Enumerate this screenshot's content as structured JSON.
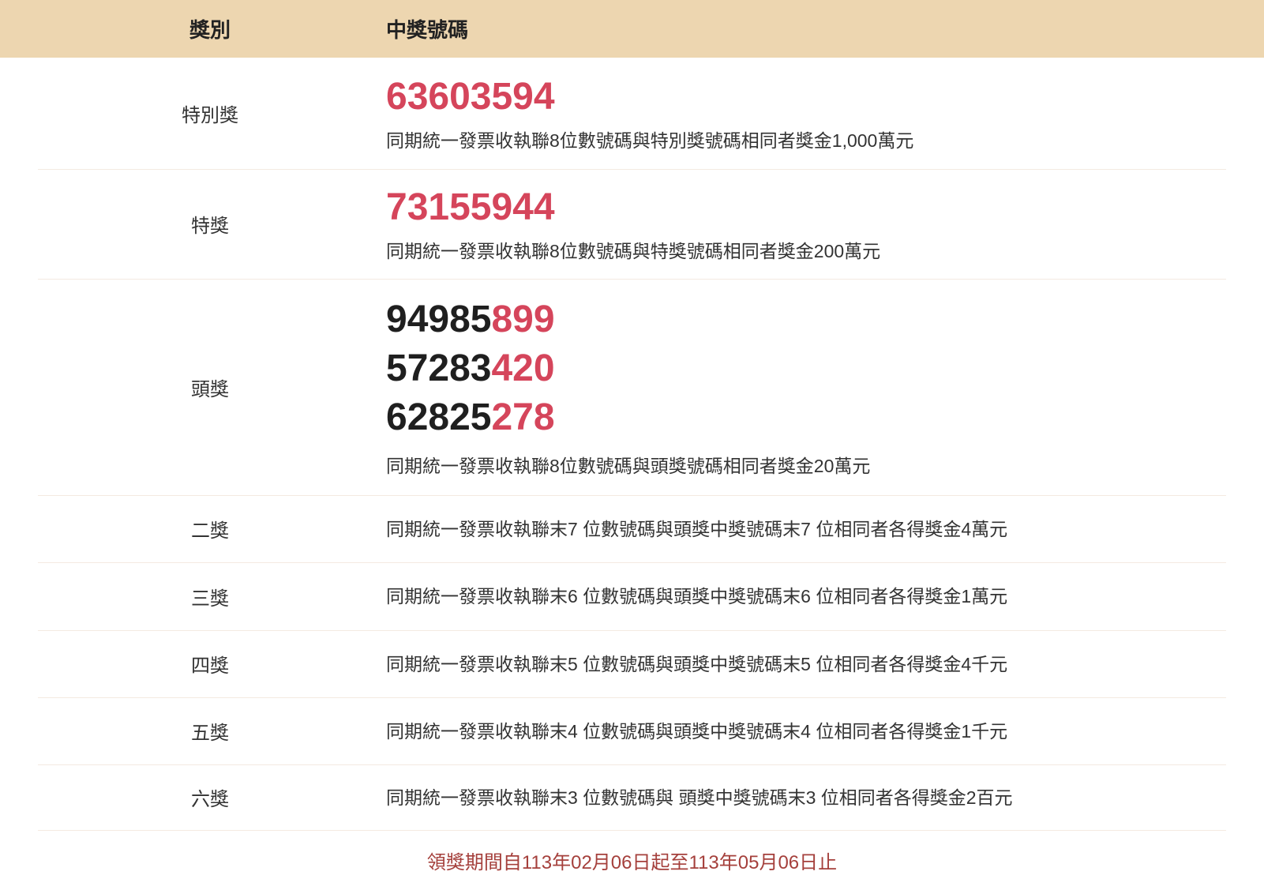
{
  "table": {
    "header": {
      "col1": "獎別",
      "col2": "中獎號碼"
    },
    "rows": [
      {
        "label": "特別獎",
        "numbers": [
          {
            "black": "",
            "red": "63603594"
          }
        ],
        "desc": "同期統一發票收執聯8位數號碼與特別獎號碼相同者獎金1,000萬元"
      },
      {
        "label": "特獎",
        "numbers": [
          {
            "black": "",
            "red": "73155944"
          }
        ],
        "desc": "同期統一發票收執聯8位數號碼與特獎號碼相同者獎金200萬元"
      },
      {
        "label": "頭獎",
        "numbers": [
          {
            "black": "94985",
            "red": "899"
          },
          {
            "black": "57283",
            "red": "420"
          },
          {
            "black": "62825",
            "red": "278"
          }
        ],
        "desc": "同期統一發票收執聯8位數號碼與頭獎號碼相同者獎金20萬元"
      },
      {
        "label": "二獎",
        "desc": "同期統一發票收執聯末7 位數號碼與頭獎中獎號碼末7 位相同者各得獎金4萬元"
      },
      {
        "label": "三獎",
        "desc": "同期統一發票收執聯末6 位數號碼與頭獎中獎號碼末6 位相同者各得獎金1萬元"
      },
      {
        "label": "四獎",
        "desc": "同期統一發票收執聯末5 位數號碼與頭獎中獎號碼末5 位相同者各得獎金4千元"
      },
      {
        "label": "五獎",
        "desc": "同期統一發票收執聯末4 位數號碼與頭獎中獎號碼末4 位相同者各得獎金1千元"
      },
      {
        "label": "六獎",
        "desc": "同期統一發票收執聯末3 位數號碼與 頭獎中獎號碼末3 位相同者各得獎金2百元"
      }
    ],
    "footer": "領獎期間自113年02月06日起至113年05月06日止"
  },
  "colors": {
    "header_bg": "#edd6b0",
    "number_red": "#d5455b",
    "number_black": "#1f1f1f",
    "body_text": "#333333",
    "footer_text": "#a5403c",
    "divider": "#f4eae1"
  }
}
